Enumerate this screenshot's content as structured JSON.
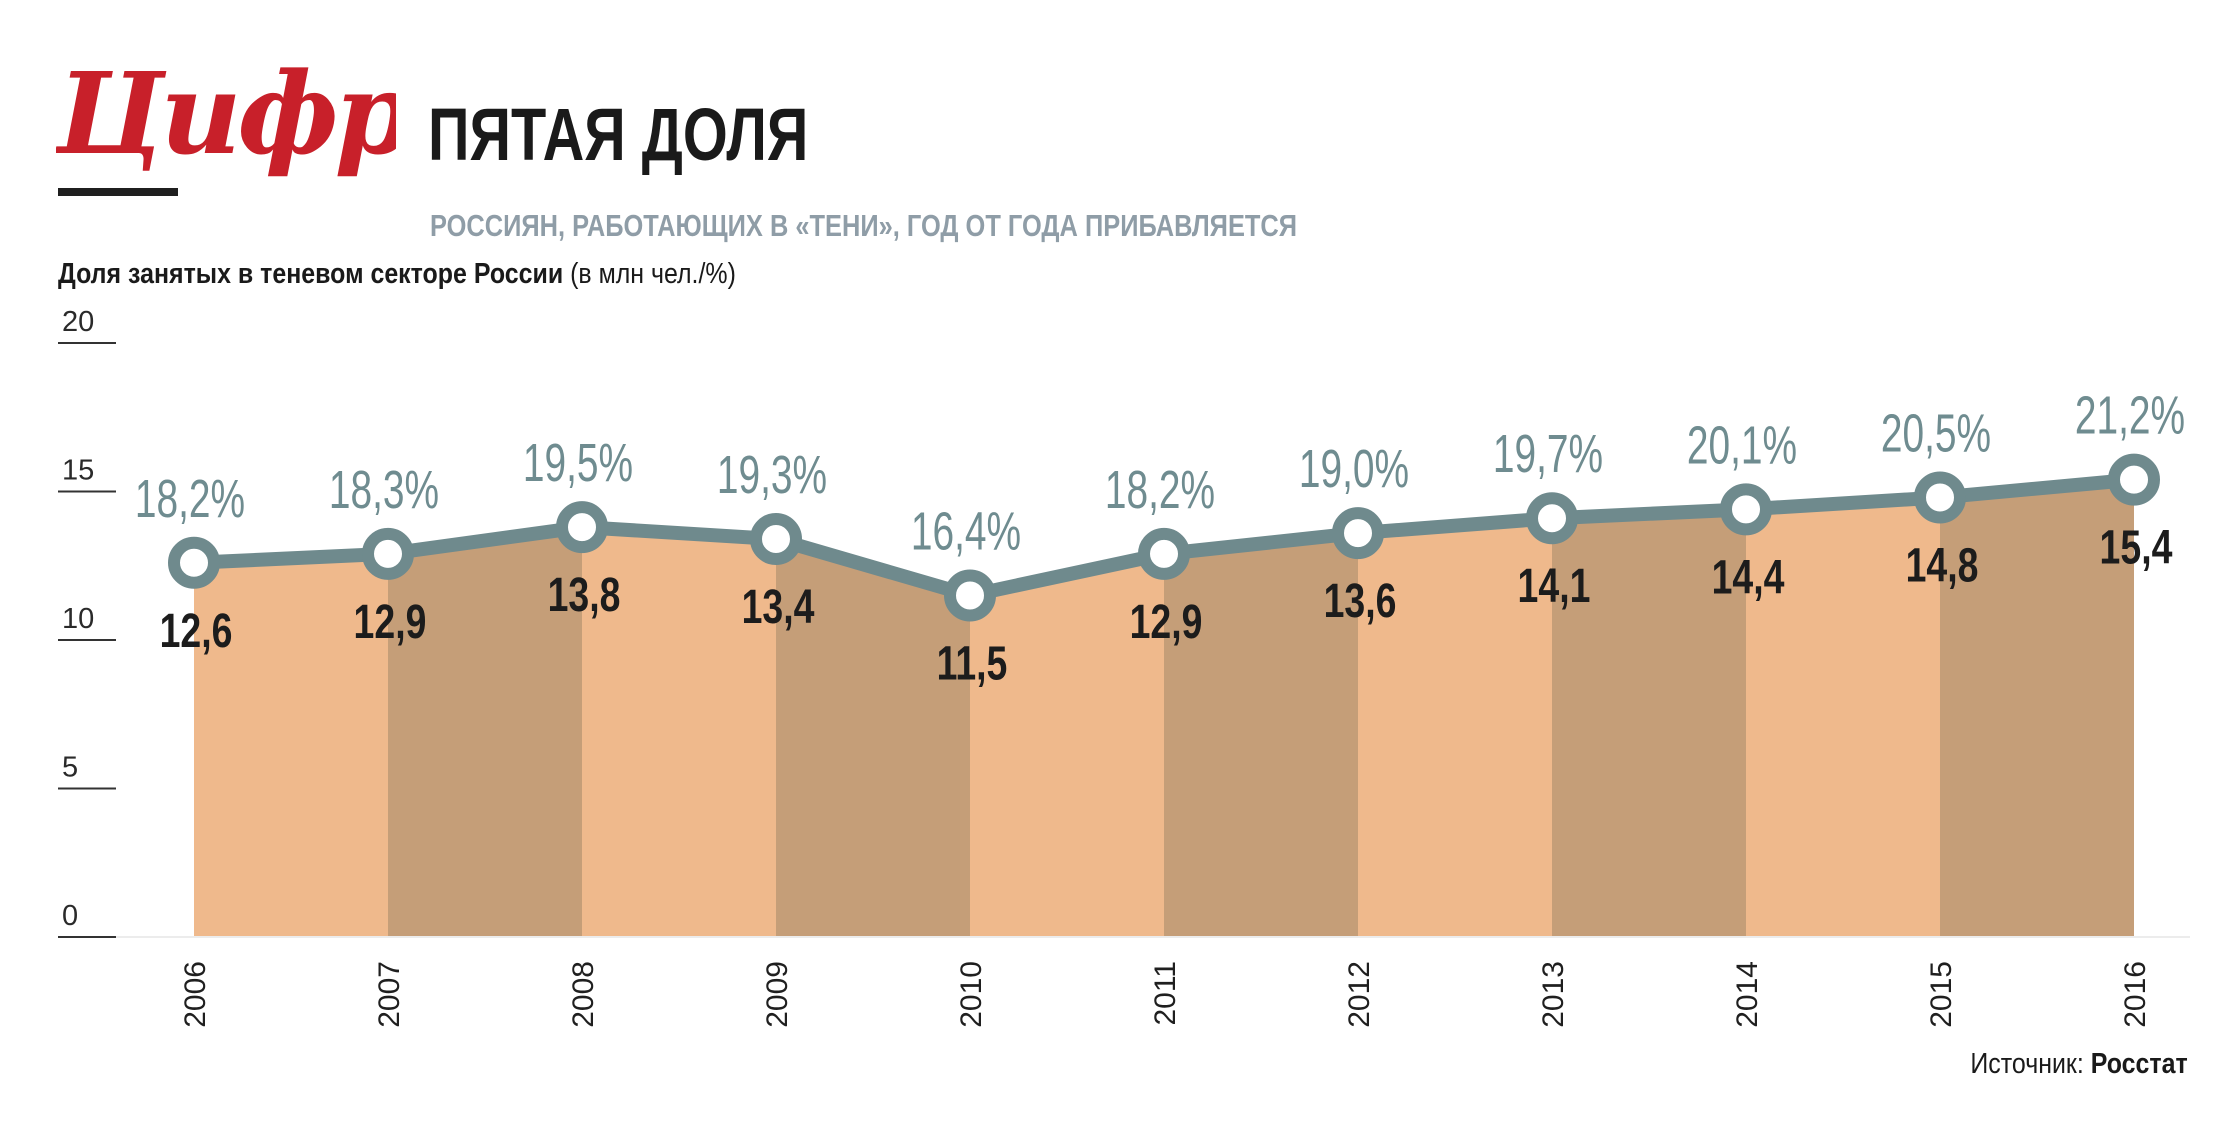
{
  "header": {
    "logo_text": "Цифры",
    "title": "ПЯТАЯ ДОЛЯ",
    "subtitle": "РОССИЯН, РАБОТАЮЩИХ В «ТЕНИ», ГОД ОТ ГОДА ПРИБАВЛЯЕТСЯ"
  },
  "chart_title": {
    "bold": "Доля занятых в теневом секторе России",
    "regular": " (в млн чел./%)"
  },
  "source": {
    "prefix": "Источник: ",
    "name": "Росстат"
  },
  "colors": {
    "logo": "#c8202a",
    "area_light": "#efb98c",
    "area_dark": "#c59e78",
    "line": "#6f8a8d",
    "marker_fill": "#ffffff",
    "pct_text": "#6f8c90"
  },
  "chart_data": {
    "type": "area",
    "title": "Доля занятых в теневом секторе России (в млн чел./%)",
    "categories": [
      "2006",
      "2007",
      "2008",
      "2009",
      "2010",
      "2011",
      "2012",
      "2013",
      "2014",
      "2015",
      "2016"
    ],
    "series": [
      {
        "values": [
          12.6,
          12.9,
          13.8,
          13.4,
          11.5,
          12.9,
          13.6,
          14.1,
          14.4,
          14.8,
          15.4
        ]
      }
    ],
    "value_labels": [
      "12,6",
      "12,9",
      "13,8",
      "13,4",
      "11,5",
      "12,9",
      "13,6",
      "14,1",
      "14,4",
      "14,8",
      "15,4"
    ],
    "percent_labels": [
      "18,2%",
      "18,3%",
      "19,5%",
      "19,3%",
      "16,4%",
      "18,2%",
      "19,0%",
      "19,7%",
      "20,1%",
      "20,5%",
      "21,2%"
    ],
    "percent_values": [
      18.2,
      18.3,
      19.5,
      19.3,
      16.4,
      18.2,
      19.0,
      19.7,
      20.1,
      20.5,
      21.2
    ],
    "ylim": [
      0,
      20
    ],
    "yticks": [
      0,
      5,
      10,
      15,
      20
    ],
    "grid": false,
    "legend": "none"
  }
}
